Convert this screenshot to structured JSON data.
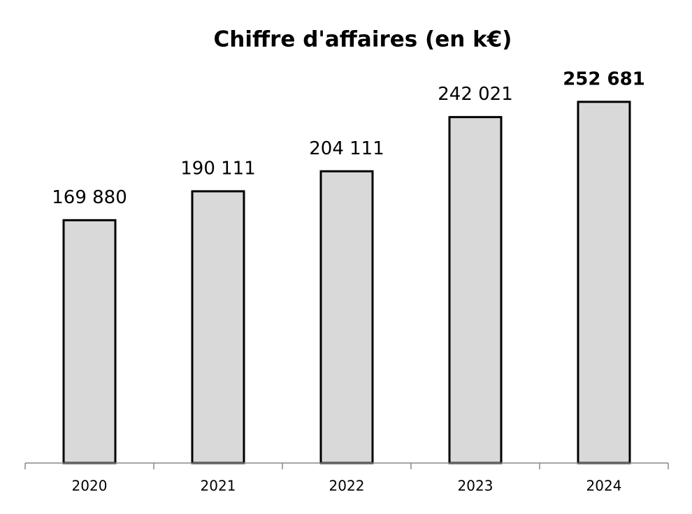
{
  "chart_data": {
    "type": "bar",
    "title": "Chiffre d'affaires (en k€)",
    "categories": [
      "2020",
      "2021",
      "2022",
      "2023",
      "2024"
    ],
    "values": [
      169880,
      190111,
      204111,
      242021,
      252681
    ],
    "value_labels": [
      "169 880",
      "190 111",
      "204 111",
      "242 021",
      "252 681"
    ],
    "value_label_weights": [
      "normal",
      "normal",
      "normal",
      "normal",
      "bold"
    ],
    "color": "#d9d9d9",
    "ylim": [
      0,
      300000
    ]
  }
}
